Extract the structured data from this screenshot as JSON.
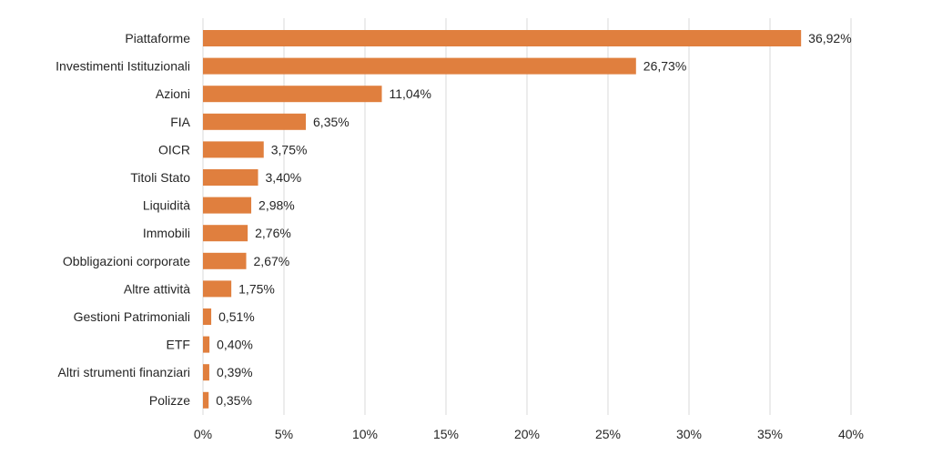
{
  "chart_data": {
    "type": "bar",
    "orientation": "horizontal",
    "categories": [
      "Piattaforme",
      "Investimenti Istituzionali",
      "Azioni",
      "FIA",
      "OICR",
      "Titoli Stato",
      "Liquidità",
      "Immobili",
      "Obbligazioni corporate",
      "Altre attività",
      "Gestioni Patrimoniali",
      "ETF",
      "Altri strumenti finanziari",
      "Polizze"
    ],
    "values": [
      36.92,
      26.73,
      11.04,
      6.35,
      3.75,
      3.4,
      2.98,
      2.76,
      2.67,
      1.75,
      0.51,
      0.4,
      0.39,
      0.35
    ],
    "value_labels": [
      "36,92%",
      "26,73%",
      "11,04%",
      "6,35%",
      "3,75%",
      "3,40%",
      "2,98%",
      "2,76%",
      "2,67%",
      "1,75%",
      "0,51%",
      "0,40%",
      "0,39%",
      "0,35%"
    ],
    "xlim": [
      0,
      40
    ],
    "x_ticks": [
      0,
      5,
      10,
      15,
      20,
      25,
      30,
      35,
      40
    ],
    "x_tick_labels": [
      "0%",
      "5%",
      "10%",
      "15%",
      "20%",
      "25%",
      "30%",
      "35%",
      "40%"
    ],
    "title": "",
    "xlabel": "",
    "ylabel": "",
    "grid": "vertical",
    "legend": "none",
    "colors": {
      "bar": "#E07F3E",
      "grid": "#D9D9D9",
      "text": "#262626"
    }
  }
}
